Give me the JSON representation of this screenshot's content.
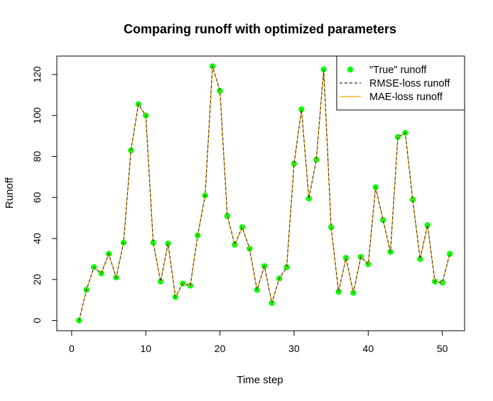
{
  "chart_data": {
    "type": "line",
    "title": "Comparing runoff with optimized parameters",
    "xlabel": "Time step",
    "ylabel": "Runoff",
    "xlim": [
      -2,
      53
    ],
    "ylim": [
      -5,
      129
    ],
    "xticks": [
      0,
      10,
      20,
      30,
      40,
      50
    ],
    "yticks": [
      0,
      20,
      40,
      60,
      80,
      100,
      120
    ],
    "legend_position": "top-right",
    "grid": false,
    "x": [
      1,
      2,
      3,
      4,
      5,
      6,
      7,
      8,
      9,
      10,
      11,
      12,
      13,
      14,
      15,
      16,
      17,
      18,
      19,
      20,
      21,
      22,
      23,
      24,
      25,
      26,
      27,
      28,
      29,
      30,
      31,
      32,
      33,
      34,
      35,
      36,
      37,
      38,
      39,
      40,
      41,
      42,
      43,
      44,
      45,
      46,
      47,
      48,
      49,
      50,
      51
    ],
    "series": [
      {
        "name": "\"True\" runoff",
        "style": "points",
        "color": "#00ff00",
        "values": [
          0,
          15,
          26,
          23,
          32.5,
          21,
          38,
          83,
          105.5,
          100,
          38,
          19,
          37.5,
          11.5,
          18,
          17,
          41.5,
          61,
          124,
          112,
          51,
          37,
          45.5,
          35,
          15,
          26.5,
          8.5,
          20.5,
          26,
          76.5,
          103,
          59.5,
          78.5,
          122.5,
          45.5,
          14,
          30.5,
          13.5,
          31,
          27.5,
          65,
          49,
          33.5,
          89.5,
          91.5,
          59,
          30,
          46.5,
          19,
          18.5,
          32.5
        ]
      },
      {
        "name": "RMSE-loss runoff",
        "style": "dashed-line",
        "color": "#333333",
        "values": [
          0,
          15,
          26,
          23,
          32.5,
          21,
          38,
          83,
          105.5,
          100,
          38,
          19,
          37.5,
          11.5,
          18,
          17,
          41.5,
          61,
          124,
          112,
          51,
          37,
          45.5,
          35,
          15,
          26.5,
          8.5,
          20.5,
          26,
          76.5,
          103,
          59.5,
          78.5,
          122.5,
          45.5,
          14,
          30.5,
          13.5,
          31,
          27.5,
          65,
          49,
          33.5,
          89.5,
          91.5,
          59,
          30,
          46.5,
          19,
          18.5,
          32.5
        ]
      },
      {
        "name": "MAE-loss runoff",
        "style": "solid-line",
        "color": "#ffa500",
        "values": [
          0,
          15,
          26,
          23,
          32.5,
          21,
          38,
          83,
          105.5,
          100,
          38,
          19,
          37.5,
          11.5,
          18,
          17,
          41.5,
          61,
          124,
          112,
          51,
          37,
          45.5,
          35,
          15,
          26.5,
          8.5,
          20.5,
          26,
          76.5,
          103,
          59.5,
          78.5,
          122.5,
          45.5,
          14,
          30.5,
          13.5,
          31,
          27.5,
          65,
          49,
          33.5,
          89.5,
          91.5,
          59,
          30,
          46.5,
          19,
          18.5,
          32.5
        ]
      }
    ]
  }
}
